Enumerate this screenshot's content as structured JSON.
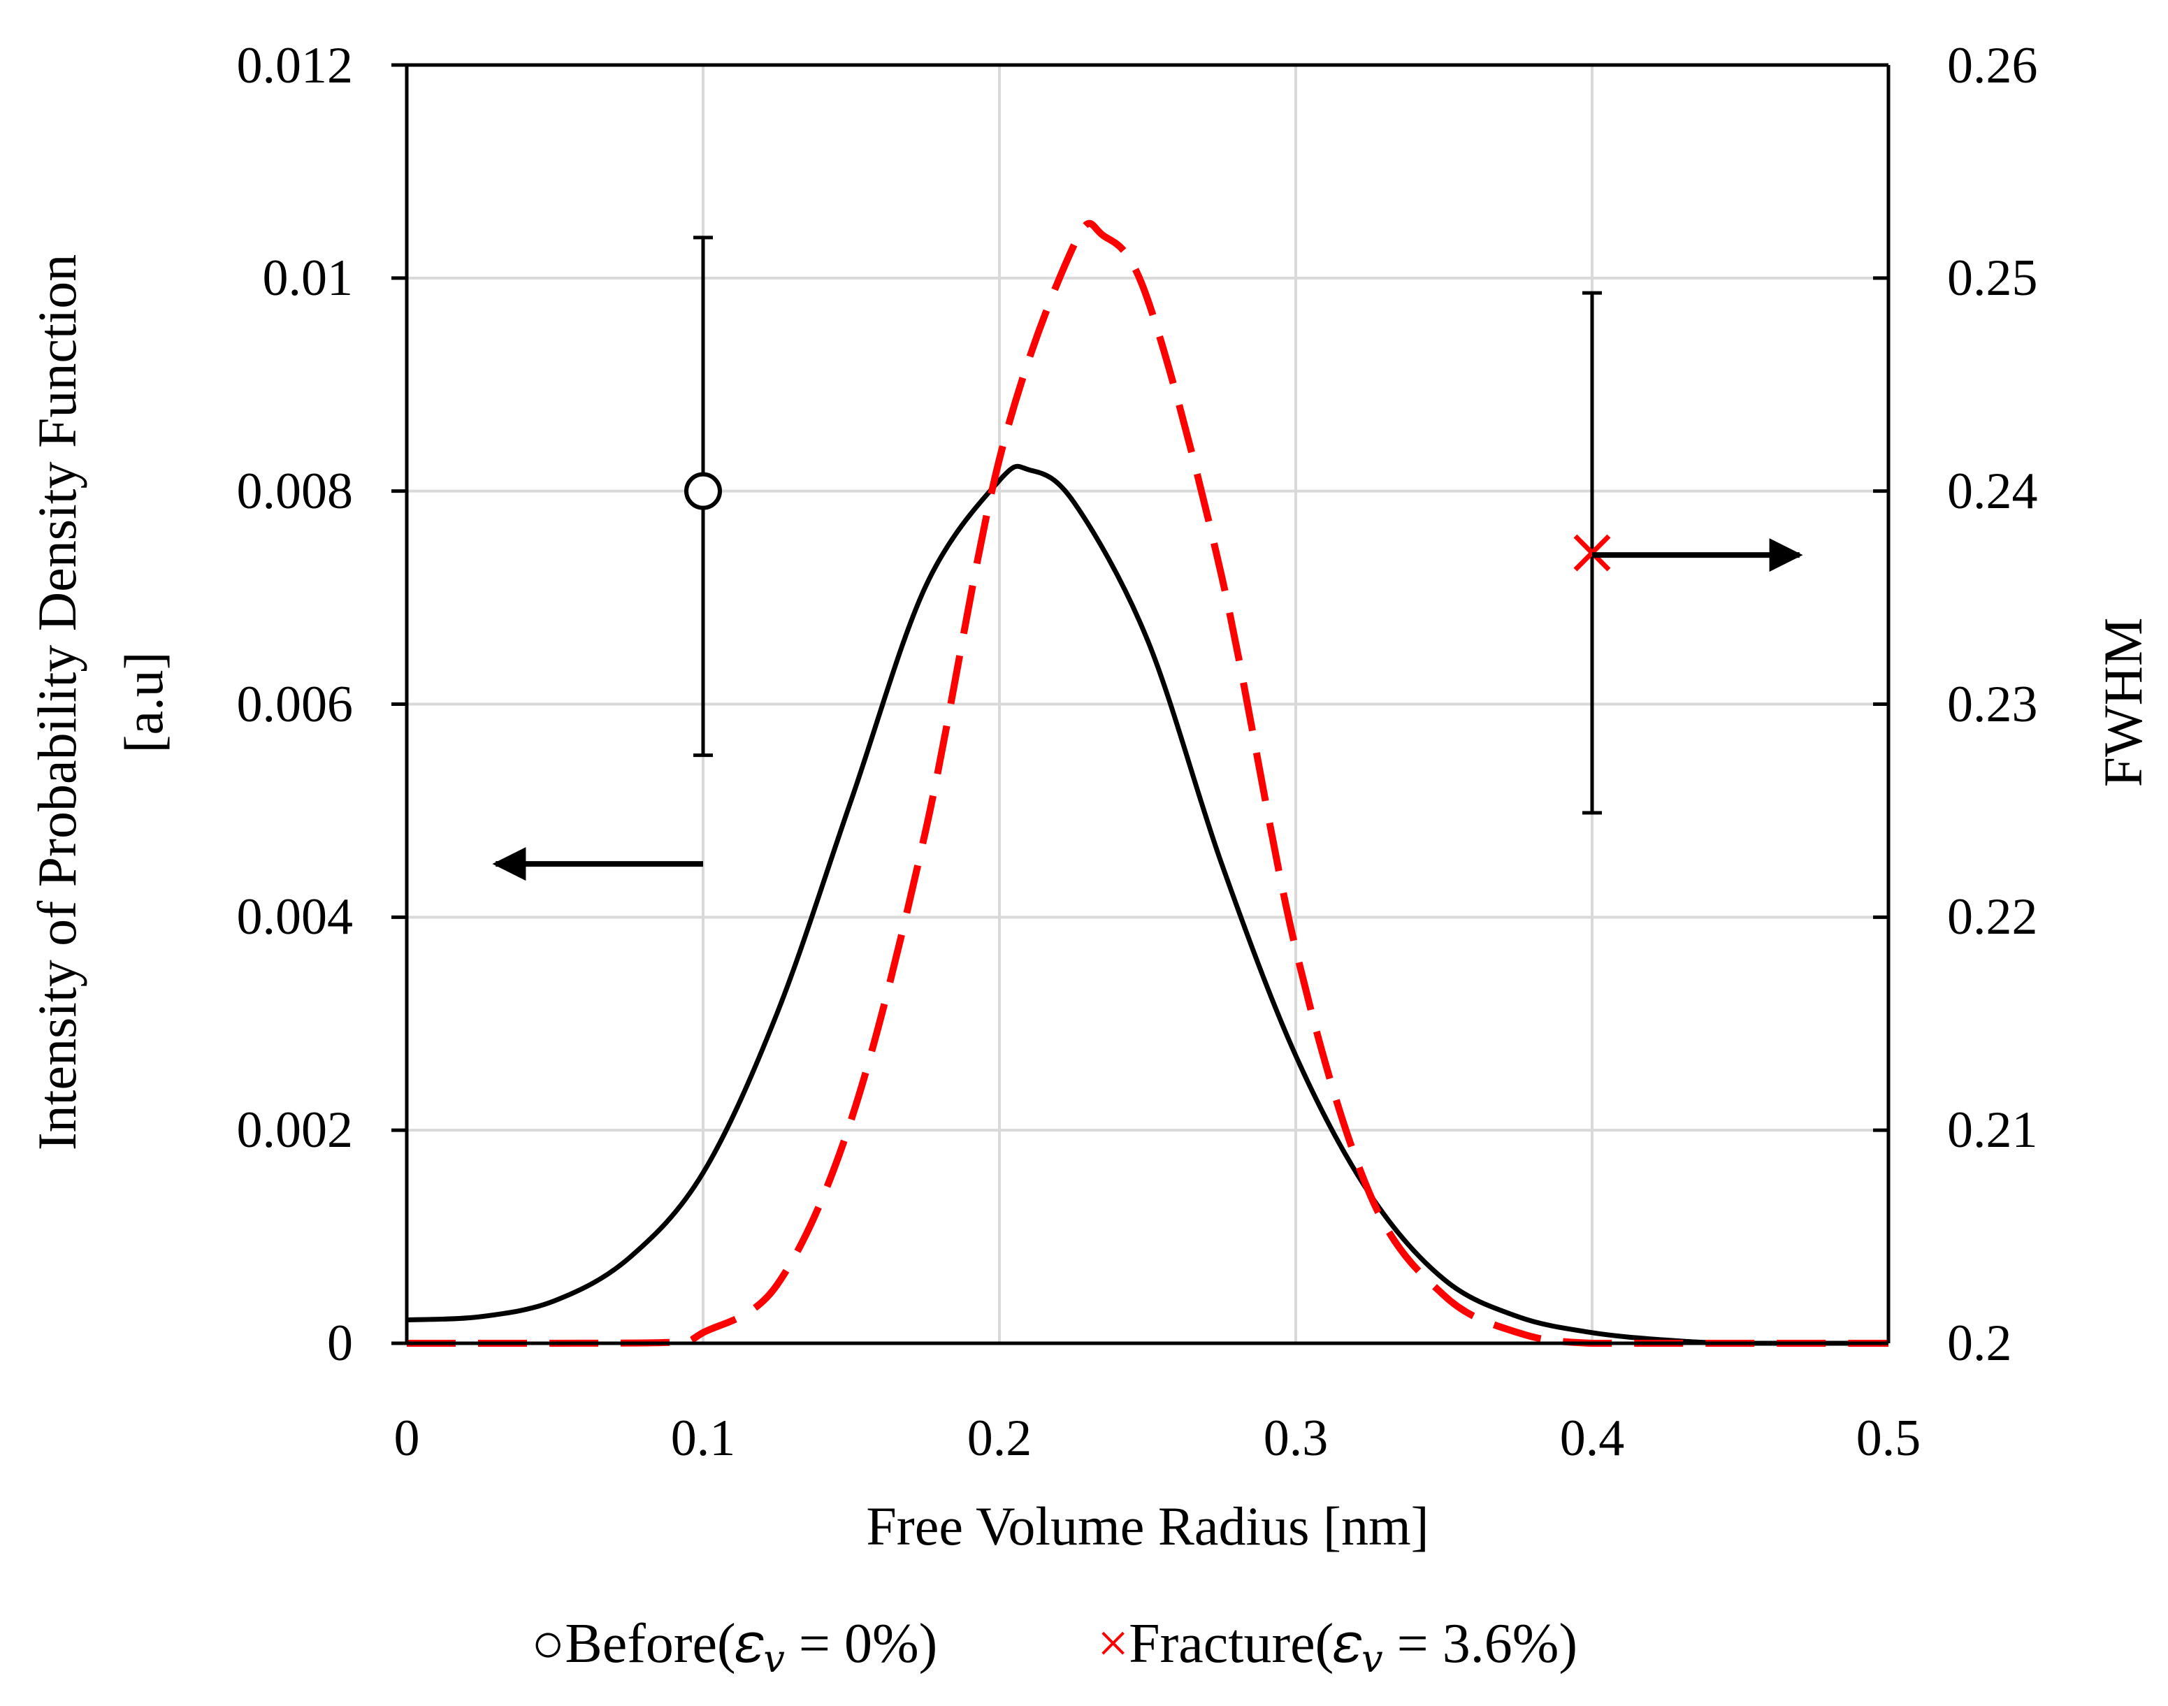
{
  "chart_data": {
    "type": "line",
    "xlabel": "Free Volume Radius [nm]",
    "ylabel_line1": "Intensity of Probability Density Function",
    "ylabel_line2": "[a.u]",
    "y2label": "FWHM",
    "xlim": [
      0,
      0.5
    ],
    "ylim": [
      0,
      0.012
    ],
    "y2lim": [
      0.2,
      0.26
    ],
    "grid": true,
    "x_ticks": [
      "0",
      "0.1",
      "0.2",
      "0.3",
      "0.4",
      "0.5"
    ],
    "y_ticks": [
      "0",
      "0.002",
      "0.004",
      "0.006",
      "0.008",
      "0.01",
      "0.012"
    ],
    "y2_ticks": [
      "0.2",
      "0.21",
      "0.22",
      "0.23",
      "0.24",
      "0.25",
      "0.26"
    ],
    "series": [
      {
        "name": "Before (εv = 0%)",
        "color": "#000000",
        "style": "solid",
        "x": [
          0,
          0.025,
          0.05,
          0.075,
          0.1,
          0.125,
          0.15,
          0.175,
          0.2,
          0.21,
          0.225,
          0.25,
          0.275,
          0.3,
          0.325,
          0.35,
          0.375,
          0.4,
          0.425,
          0.45,
          0.5
        ],
        "values": [
          0.00022,
          0.00025,
          0.0004,
          0.0008,
          0.0016,
          0.0031,
          0.0051,
          0.0071,
          0.0081,
          0.0082,
          0.0079,
          0.0066,
          0.0045,
          0.0027,
          0.0014,
          0.0006,
          0.00025,
          0.0001,
          3e-05,
          0.0,
          0.0
        ]
      },
      {
        "name": "Fracture (εv = 3.6%)",
        "color": "#ff0000",
        "style": "dashed",
        "x": [
          0,
          0.05,
          0.09,
          0.1,
          0.125,
          0.15,
          0.175,
          0.2,
          0.225,
          0.235,
          0.25,
          0.275,
          0.3,
          0.325,
          0.35,
          0.375,
          0.4,
          0.45,
          0.5
        ],
        "values": [
          0.0,
          0.0,
          1e-05,
          0.0001,
          0.00055,
          0.0021,
          0.0048,
          0.0083,
          0.0103,
          0.0104,
          0.0098,
          0.0072,
          0.0037,
          0.0014,
          0.00045,
          0.0001,
          0.0,
          0.0,
          0.0
        ]
      }
    ],
    "fwhm_points": [
      {
        "name": "Before",
        "marker": "circle",
        "color": "#000000",
        "x": 0.1,
        "fwhm": 0.24,
        "err_low": 0.2276,
        "err_high": 0.2519
      },
      {
        "name": "Fracture",
        "marker": "x",
        "color": "#ff0000",
        "x": 0.4,
        "fwhm": 0.2371,
        "err_low": 0.2249,
        "err_high": 0.2493
      }
    ],
    "axis_arrows": [
      {
        "points_to": "left-axis",
        "x_from": 0.1,
        "x_to": 0.03,
        "y": 0.0045
      },
      {
        "points_to": "right-axis",
        "x_from": 0.4,
        "x_to": 0.47,
        "y": 0.0074
      }
    ],
    "legend": {
      "placement": "bottom",
      "before_symbol": "○",
      "before_text": "Before(𝜀",
      "before_sub": "𝑣",
      "before_tail": " = 0%)",
      "fracture_symbol": "×",
      "fracture_text": "Fracture(𝜀",
      "fracture_sub": "𝑣",
      "fracture_tail": " = 3.6%)"
    }
  }
}
